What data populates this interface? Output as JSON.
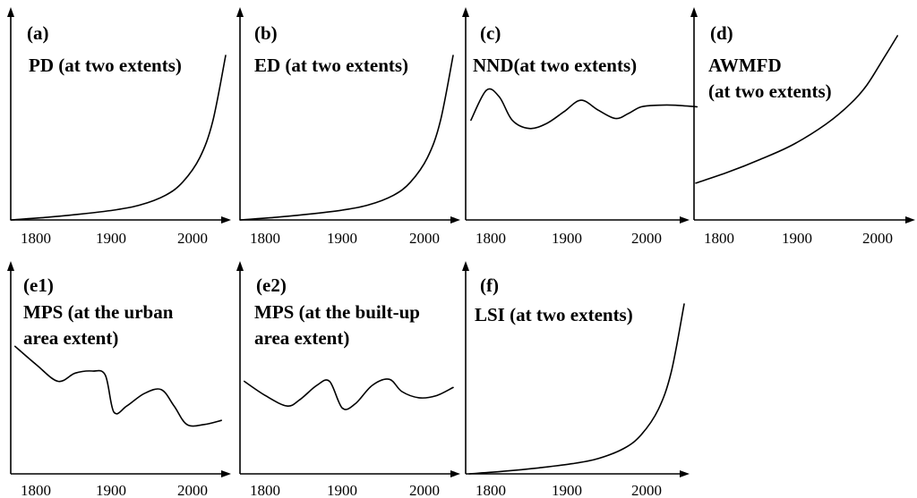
{
  "chart_data": [
    {
      "id": "a",
      "type": "line",
      "letter": "(a)",
      "title": [
        "PD (at two extents)"
      ],
      "xlabel": "",
      "ylabel": "",
      "xticks": [
        "1800",
        "1900",
        "2000"
      ],
      "xlim": [
        1780,
        2050
      ],
      "ylim": [
        0,
        1
      ],
      "x": [
        1780,
        1820,
        1860,
        1900,
        1930,
        1960,
        1980,
        2000,
        2015,
        2030
      ],
      "values": [
        0.0,
        0.015,
        0.035,
        0.06,
        0.09,
        0.15,
        0.23,
        0.38,
        0.6,
        1.0
      ]
    },
    {
      "id": "b",
      "type": "line",
      "letter": "(b)",
      "title": [
        "ED (at two extents)"
      ],
      "xlabel": "",
      "ylabel": "",
      "xticks": [
        "1800",
        "1900",
        "2000"
      ],
      "xlim": [
        1780,
        2050
      ],
      "ylim": [
        0,
        1
      ],
      "x": [
        1780,
        1820,
        1860,
        1900,
        1930,
        1960,
        1980,
        2000,
        2015,
        2030
      ],
      "values": [
        0.0,
        0.015,
        0.035,
        0.06,
        0.09,
        0.15,
        0.23,
        0.38,
        0.6,
        1.0
      ]
    },
    {
      "id": "c",
      "type": "line",
      "letter": "(c)",
      "title": [
        "NND(at two extents)"
      ],
      "xlabel": "",
      "ylabel": "",
      "xticks": [
        "1800",
        "1900",
        "2000"
      ],
      "xlim": [
        1780,
        2050
      ],
      "ylim": [
        0,
        1
      ],
      "x": [
        1782,
        1800,
        1815,
        1830,
        1850,
        1870,
        1890,
        1910,
        1930,
        1950,
        1965,
        1980,
        2000,
        2020,
        2045
      ],
      "values": [
        0.6,
        0.78,
        0.74,
        0.6,
        0.55,
        0.58,
        0.65,
        0.72,
        0.66,
        0.61,
        0.64,
        0.68,
        0.69,
        0.69,
        0.68
      ]
    },
    {
      "id": "d",
      "type": "line",
      "letter": "(d)",
      "title": [
        "AWMFD",
        "(at two extents)"
      ],
      "xlabel": "",
      "ylabel": "",
      "xticks": [
        "1800",
        "1900",
        "2000"
      ],
      "xlim": [
        1780,
        2050
      ],
      "ylim": [
        0,
        1
      ],
      "x": [
        1780,
        1820,
        1860,
        1900,
        1940,
        1970,
        1990,
        2010,
        2028
      ],
      "values": [
        0.2,
        0.26,
        0.33,
        0.41,
        0.52,
        0.63,
        0.73,
        0.87,
        1.0
      ]
    },
    {
      "id": "e1",
      "type": "line",
      "letter": "(e1)",
      "title": [
        "MPS (at the urban",
        "area extent)"
      ],
      "xlabel": "",
      "ylabel": "",
      "xticks": [
        "1800",
        "1900",
        "2000"
      ],
      "xlim": [
        1780,
        2050
      ],
      "ylim": [
        0,
        1
      ],
      "x": [
        1785,
        1810,
        1835,
        1855,
        1875,
        1890,
        1900,
        1915,
        1935,
        1955,
        1970,
        1985,
        2005,
        2025
      ],
      "values": [
        0.62,
        0.53,
        0.45,
        0.49,
        0.5,
        0.48,
        0.3,
        0.33,
        0.39,
        0.41,
        0.33,
        0.24,
        0.24,
        0.26
      ]
    },
    {
      "id": "e2",
      "type": "line",
      "letter": "(e2)",
      "title": [
        "MPS (at the built-up",
        "area extent)"
      ],
      "xlabel": "",
      "ylabel": "",
      "xticks": [
        "1800",
        "1900",
        "2000"
      ],
      "xlim": [
        1780,
        2050
      ],
      "ylim": [
        0,
        1
      ],
      "x": [
        1785,
        1810,
        1835,
        1850,
        1870,
        1885,
        1900,
        1915,
        1935,
        1955,
        1970,
        1990,
        2010,
        2030
      ],
      "values": [
        0.45,
        0.38,
        0.33,
        0.36,
        0.43,
        0.45,
        0.32,
        0.34,
        0.43,
        0.46,
        0.4,
        0.37,
        0.38,
        0.42
      ]
    },
    {
      "id": "f",
      "type": "line",
      "letter": "(f)",
      "title": [
        "LSI (at two extents)"
      ],
      "xlabel": "",
      "ylabel": "",
      "xticks": [
        "1800",
        "1900",
        "2000"
      ],
      "xlim": [
        1780,
        2050
      ],
      "ylim": [
        0,
        1
      ],
      "x": [
        1780,
        1820,
        1860,
        1900,
        1930,
        1960,
        1980,
        2000,
        2015,
        2030
      ],
      "values": [
        0.0,
        0.015,
        0.035,
        0.06,
        0.09,
        0.15,
        0.23,
        0.38,
        0.6,
        1.0
      ]
    }
  ]
}
